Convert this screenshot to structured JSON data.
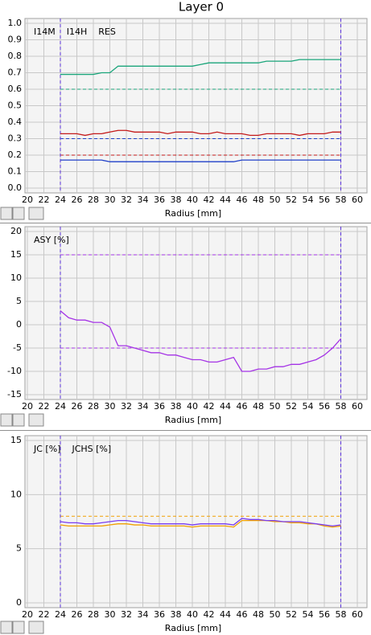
{
  "chart_data": [
    {
      "type": "line",
      "title": "Layer 0",
      "xlabel": "Radius [mm]",
      "x": [
        24,
        25,
        26,
        27,
        28,
        29,
        30,
        31,
        32,
        33,
        34,
        35,
        36,
        37,
        38,
        39,
        40,
        41,
        42,
        43,
        44,
        45,
        46,
        47,
        48,
        49,
        50,
        51,
        52,
        53,
        54,
        55,
        56,
        57,
        58
      ],
      "series": [
        {
          "name": "I14M",
          "color": "#1aa57a",
          "values": [
            0.69,
            0.69,
            0.69,
            0.69,
            0.69,
            0.7,
            0.7,
            0.74,
            0.74,
            0.74,
            0.74,
            0.74,
            0.74,
            0.74,
            0.74,
            0.74,
            0.74,
            0.75,
            0.76,
            0.76,
            0.76,
            0.76,
            0.76,
            0.76,
            0.76,
            0.77,
            0.77,
            0.77,
            0.77,
            0.78,
            0.78,
            0.78,
            0.78,
            0.78,
            0.78
          ]
        },
        {
          "name": "I14H",
          "color": "#1f3fc8",
          "values": [
            0.17,
            0.17,
            0.17,
            0.17,
            0.17,
            0.17,
            0.16,
            0.16,
            0.16,
            0.16,
            0.16,
            0.16,
            0.16,
            0.16,
            0.16,
            0.16,
            0.16,
            0.16,
            0.16,
            0.16,
            0.16,
            0.16,
            0.17,
            0.17,
            0.17,
            0.17,
            0.17,
            0.17,
            0.17,
            0.17,
            0.17,
            0.17,
            0.17,
            0.17,
            0.17
          ]
        },
        {
          "name": "RES",
          "color": "#c41a1a",
          "values": [
            0.33,
            0.33,
            0.33,
            0.32,
            0.33,
            0.33,
            0.34,
            0.35,
            0.35,
            0.34,
            0.34,
            0.34,
            0.34,
            0.33,
            0.34,
            0.34,
            0.34,
            0.33,
            0.33,
            0.34,
            0.33,
            0.33,
            0.33,
            0.32,
            0.32,
            0.33,
            0.33,
            0.33,
            0.33,
            0.32,
            0.33,
            0.33,
            0.33,
            0.34,
            0.34
          ]
        }
      ],
      "reference_lines": [
        {
          "value": 0.6,
          "color": "#1aa57a"
        },
        {
          "value": 0.3,
          "color": "#1f3fc8"
        },
        {
          "value": 0.2,
          "color": "#c41a1a"
        }
      ],
      "x_markers": [
        24,
        58
      ],
      "marker_color": "#5a32d8",
      "xlim": [
        20,
        60
      ],
      "xticks": [
        20,
        22,
        24,
        26,
        28,
        30,
        32,
        34,
        36,
        38,
        40,
        42,
        44,
        46,
        48,
        50,
        52,
        54,
        56,
        58,
        60
      ],
      "ylim": [
        0,
        1
      ],
      "yticks": [
        {
          "value": 0,
          "label": "0.0"
        },
        0.1,
        0.2,
        0.3,
        0.4,
        0.5,
        0.6,
        0.7,
        0.8,
        0.9,
        {
          "value": 1,
          "label": "1.0"
        }
      ],
      "grid": true
    },
    {
      "type": "line",
      "xlabel": "Radius [mm]",
      "x": [
        24,
        25,
        26,
        27,
        28,
        29,
        30,
        31,
        32,
        33,
        34,
        35,
        36,
        37,
        38,
        39,
        40,
        41,
        42,
        43,
        44,
        45,
        46,
        47,
        48,
        49,
        50,
        51,
        52,
        53,
        54,
        55,
        56,
        57,
        58
      ],
      "series": [
        {
          "name": "ASY [%]",
          "color": "#a533e6",
          "values": [
            3,
            1.5,
            1,
            1,
            0.5,
            0.5,
            -0.5,
            -4.5,
            -4.5,
            -5,
            -5.5,
            -6,
            -6,
            -6.5,
            -6.5,
            -7,
            -7.5,
            -7.5,
            -8,
            -8,
            -7.5,
            -7,
            -10,
            -10,
            -9.5,
            -9.5,
            -9,
            -9,
            -8.5,
            -8.5,
            -8,
            -7.5,
            -6.5,
            -5,
            -3
          ]
        }
      ],
      "reference_lines": [
        {
          "value": 15,
          "color": "#a533e6"
        },
        {
          "value": -5,
          "color": "#a533e6"
        }
      ],
      "x_markers": [
        24,
        58
      ],
      "marker_color": "#5a32d8",
      "xlim": [
        20,
        60
      ],
      "xticks": [
        20,
        22,
        24,
        26,
        28,
        30,
        32,
        34,
        36,
        38,
        40,
        42,
        44,
        46,
        48,
        50,
        52,
        54,
        56,
        58,
        60
      ],
      "ylim": [
        -15,
        20
      ],
      "yticks": [
        -15,
        -10,
        -5,
        0,
        5,
        10,
        15,
        20
      ],
      "grid": true
    },
    {
      "type": "line",
      "xlabel": "Radius [mm]",
      "x": [
        24,
        25,
        26,
        27,
        28,
        29,
        30,
        31,
        32,
        33,
        34,
        35,
        36,
        37,
        38,
        39,
        40,
        41,
        42,
        43,
        44,
        45,
        46,
        47,
        48,
        49,
        50,
        51,
        52,
        53,
        54,
        55,
        56,
        57,
        58
      ],
      "series": [
        {
          "name": "JC [%]",
          "color": "#f0a000",
          "values": [
            7.2,
            7.1,
            7.1,
            7.1,
            7.1,
            7.1,
            7.2,
            7.3,
            7.3,
            7.2,
            7.2,
            7.1,
            7.1,
            7.1,
            7.1,
            7.1,
            7.0,
            7.1,
            7.1,
            7.1,
            7.1,
            7.0,
            7.6,
            7.6,
            7.6,
            7.6,
            7.5,
            7.5,
            7.4,
            7.4,
            7.3,
            7.3,
            7.1,
            7.0,
            7.1
          ]
        },
        {
          "name": "JCHS [%]",
          "color": "#7a3cf0",
          "values": [
            7.5,
            7.4,
            7.4,
            7.3,
            7.3,
            7.4,
            7.5,
            7.6,
            7.6,
            7.5,
            7.4,
            7.3,
            7.3,
            7.3,
            7.3,
            7.3,
            7.2,
            7.3,
            7.3,
            7.3,
            7.3,
            7.2,
            7.8,
            7.7,
            7.7,
            7.6,
            7.6,
            7.5,
            7.5,
            7.5,
            7.4,
            7.3,
            7.2,
            7.1,
            7.2
          ]
        }
      ],
      "reference_lines": [
        {
          "value": 8,
          "color": "#f0a000"
        }
      ],
      "x_markers": [
        24,
        58
      ],
      "marker_color": "#5a32d8",
      "xlim": [
        20,
        60
      ],
      "xticks": [
        20,
        22,
        24,
        26,
        28,
        30,
        32,
        34,
        36,
        38,
        40,
        42,
        44,
        46,
        48,
        50,
        52,
        54,
        56,
        58,
        60
      ],
      "ylim": [
        0,
        15
      ],
      "yticks": [
        0,
        5,
        10,
        15
      ],
      "grid": true
    }
  ]
}
